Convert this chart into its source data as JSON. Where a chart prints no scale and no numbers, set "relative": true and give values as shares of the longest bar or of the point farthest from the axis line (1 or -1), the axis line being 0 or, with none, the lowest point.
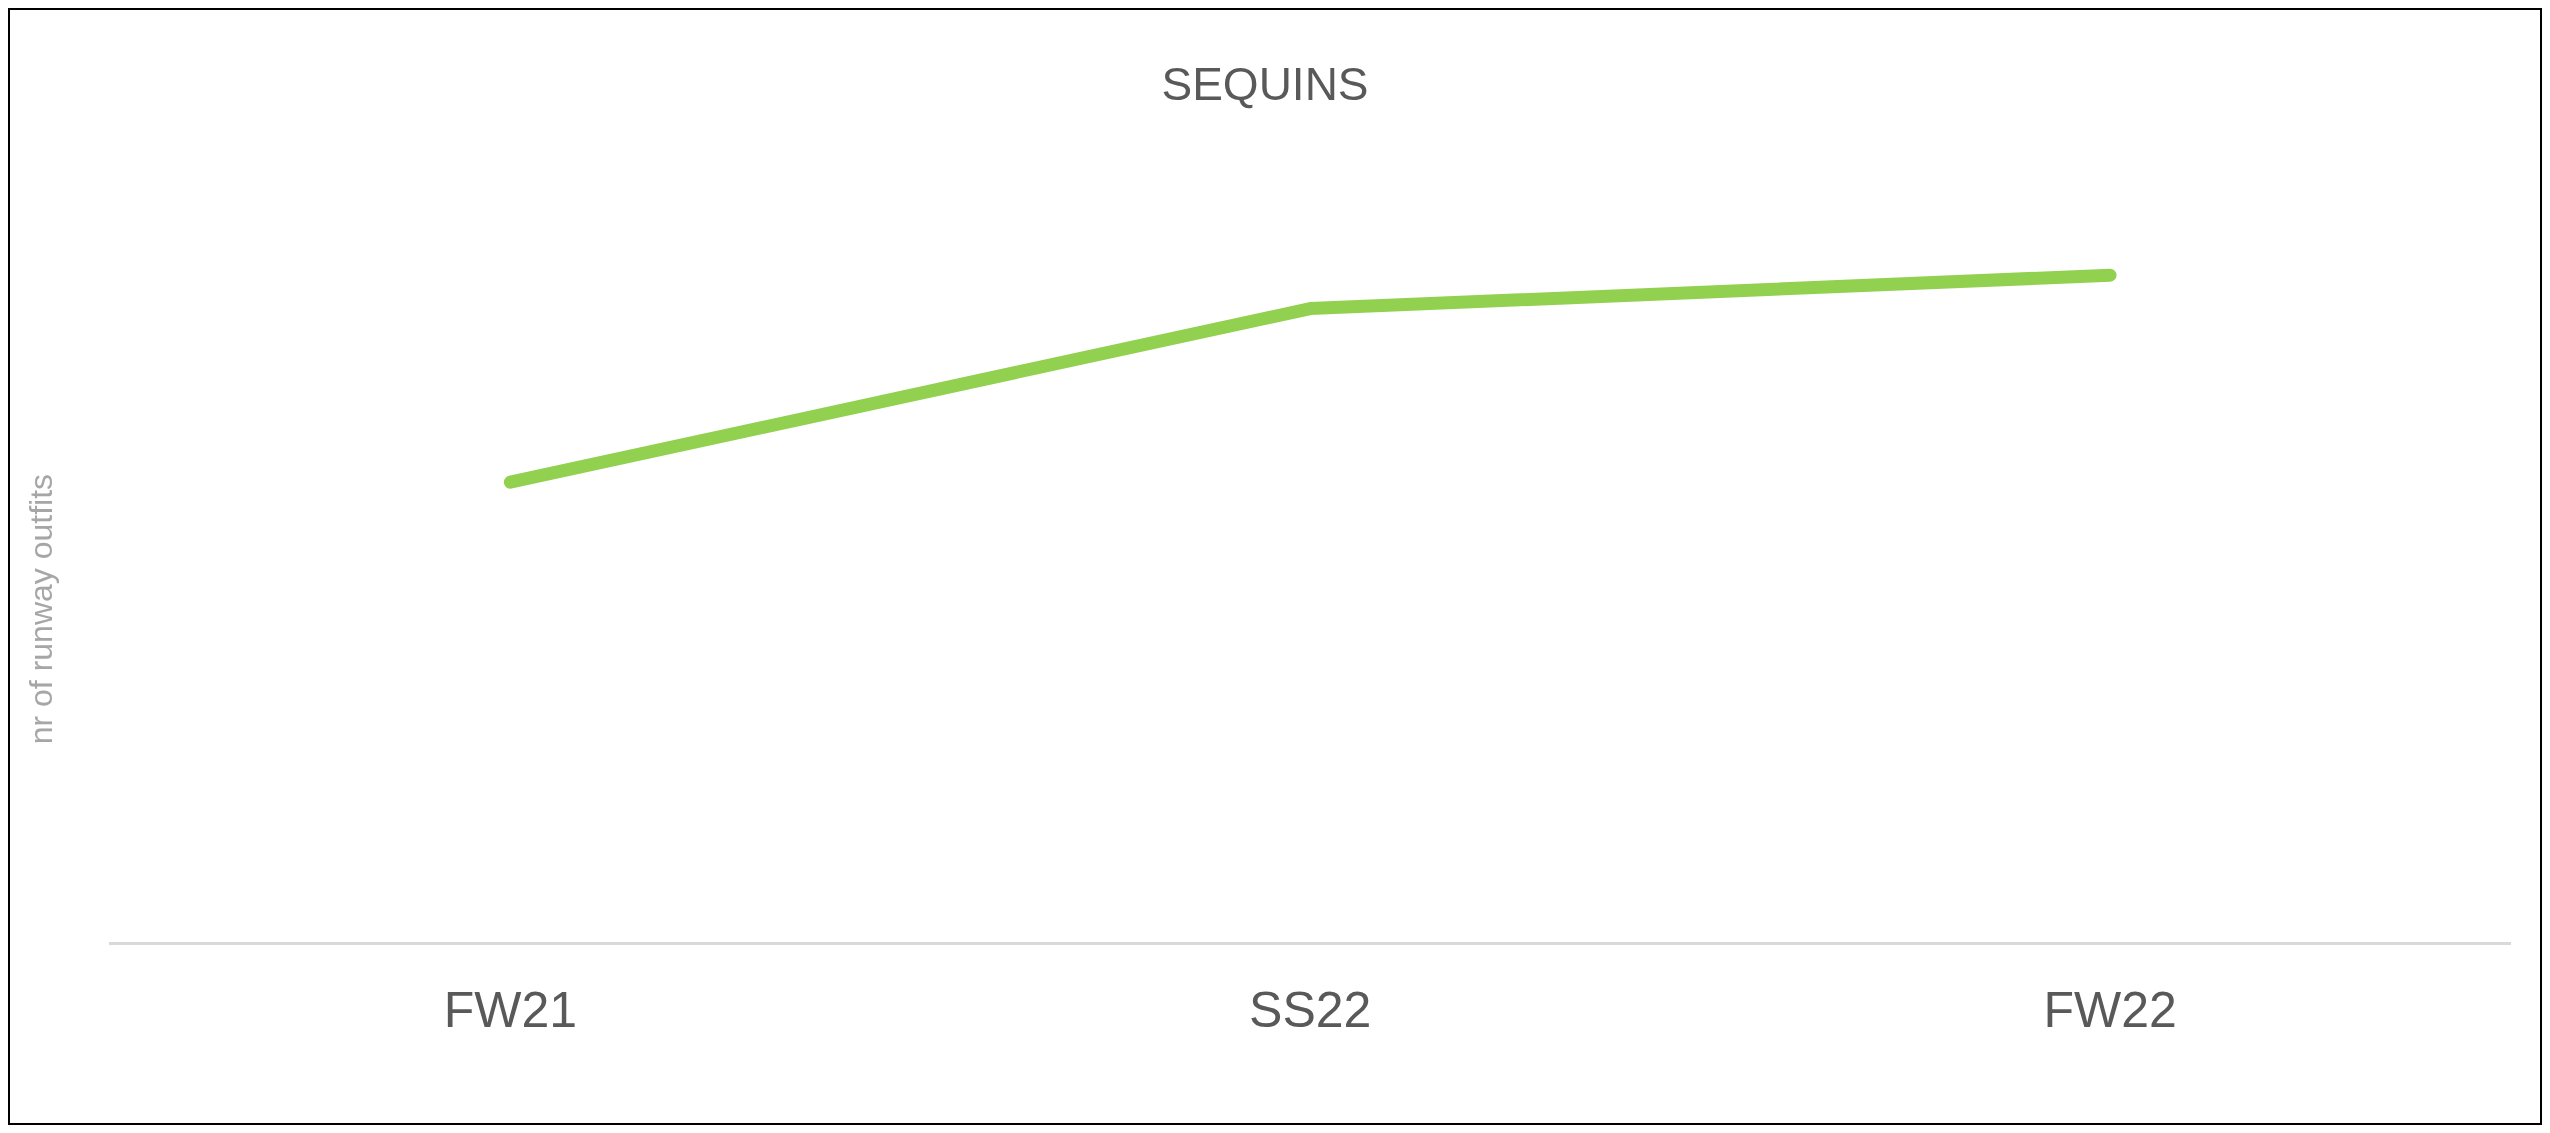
{
  "chart_data": {
    "type": "line",
    "title": "SEQUINS",
    "ylabel": "nr of runway outfits",
    "relative": true,
    "categories": [
      "FW21",
      "SS22",
      "FW22"
    ],
    "series": [
      {
        "color": "#92d050",
        "values": [
          0.69,
          0.95,
          1
        ]
      }
    ],
    "grid": false,
    "legend": false,
    "marker": "none",
    "line_style": "solid"
  }
}
